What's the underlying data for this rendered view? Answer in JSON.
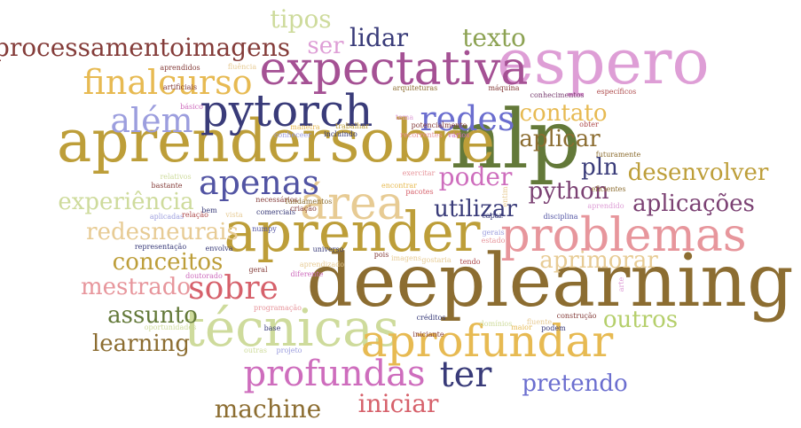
{
  "words": [
    {
      "t": "deeplearning",
      "c": "#8c6d31"
    },
    {
      "t": "nlp",
      "c": "#637939"
    },
    {
      "t": "aprendersobre",
      "c": "#bd9e39"
    },
    {
      "t": "espero",
      "c": "#de9ed6"
    },
    {
      "t": "expectativa",
      "c": "#a55194"
    },
    {
      "t": "aprender",
      "c": "#bd9e39"
    },
    {
      "t": "técnicas",
      "c": "#cedb9c"
    },
    {
      "t": "problemas",
      "c": "#e7969c"
    },
    {
      "t": "pytorch",
      "c": "#393b79"
    },
    {
      "t": "aprofundar",
      "c": "#e7ba52"
    },
    {
      "t": "área",
      "c": "#e7cb94"
    },
    {
      "t": "processamentoimagens",
      "c": "#843c39"
    },
    {
      "t": "finalcurso",
      "c": "#e7ba52"
    },
    {
      "t": "profundas",
      "c": "#ce6dbd"
    },
    {
      "t": "redes",
      "c": "#6b6ecf"
    },
    {
      "t": "além",
      "c": "#9c9ede"
    },
    {
      "t": "apenas",
      "c": "#5254a3"
    },
    {
      "t": "sobre",
      "c": "#d6616b"
    },
    {
      "t": "ter",
      "c": "#393b79"
    },
    {
      "t": "tipos",
      "c": "#cedb9c"
    },
    {
      "t": "lidar",
      "c": "#393b79"
    },
    {
      "t": "texto",
      "c": "#8ca252"
    },
    {
      "t": "ser",
      "c": "#de9ed6"
    },
    {
      "t": "contato",
      "c": "#e7ba52"
    },
    {
      "t": "aplicar",
      "c": "#8c6d31"
    },
    {
      "t": "pln",
      "c": "#393b79"
    },
    {
      "t": "desenvolver",
      "c": "#bd9e39"
    },
    {
      "t": "poder",
      "c": "#ce6dbd"
    },
    {
      "t": "python",
      "c": "#7b4173"
    },
    {
      "t": "aplicações",
      "c": "#7b4173"
    },
    {
      "t": "utilizar",
      "c": "#393b79"
    },
    {
      "t": "experiência",
      "c": "#cedb9c"
    },
    {
      "t": "redesneurais",
      "c": "#e7cb94"
    },
    {
      "t": "conceitos",
      "c": "#bd9e39"
    },
    {
      "t": "aprimorar",
      "c": "#e7cb94"
    },
    {
      "t": "mestrado",
      "c": "#e7969c"
    },
    {
      "t": "assunto",
      "c": "#637939"
    },
    {
      "t": "learning",
      "c": "#8c6d31"
    },
    {
      "t": "outros",
      "c": "#b5cf6b"
    },
    {
      "t": "pretendo",
      "c": "#6b6ecf"
    },
    {
      "t": "iniciar",
      "c": "#d6616b"
    },
    {
      "t": "machine",
      "c": "#8c6d31"
    },
    {
      "t": "aprendidos",
      "c": "#843c39"
    },
    {
      "t": "fluência",
      "c": "#e7cb94"
    },
    {
      "t": "artificiais",
      "c": "#843c39"
    },
    {
      "t": "arquiteturas",
      "c": "#8c6d31"
    },
    {
      "t": "máquina",
      "c": "#843c39"
    },
    {
      "t": "conhecimentos",
      "c": "#7b4173"
    },
    {
      "t": "específicos",
      "c": "#ad494a"
    },
    {
      "t": "básico",
      "c": "#ce6dbd"
    },
    {
      "t": "maneira",
      "c": "#e7ba52"
    },
    {
      "t": "tema",
      "c": "#de9ed6"
    },
    {
      "t": "potencialmente",
      "c": "#843c39"
    },
    {
      "t": "obter",
      "c": "#ad494a"
    },
    {
      "t": "conheceer",
      "c": "#9c9ede"
    },
    {
      "t": "trabalhar",
      "c": "#bd9e39"
    },
    {
      "t": "incluindo",
      "c": "#393b79"
    },
    {
      "t": "recorrentes",
      "c": "#e7969c"
    },
    {
      "t": "vários",
      "c": "#ce6dbd"
    },
    {
      "t": "futuramente",
      "c": "#8c6d31"
    },
    {
      "t": "relativos",
      "c": "#cedb9c"
    },
    {
      "t": "exercitar",
      "c": "#e7969c"
    },
    {
      "t": "bastante",
      "c": "#843c39"
    },
    {
      "t": "necessários",
      "c": "#843c39"
    },
    {
      "t": "encontrar",
      "c": "#e7ba52"
    },
    {
      "t": "pacotes",
      "c": "#d6616b"
    },
    {
      "t": "eficientes",
      "c": "#8c6d31"
    },
    {
      "t": "aplicadas",
      "c": "#9c9ede"
    },
    {
      "t": "relação",
      "c": "#ad494a"
    },
    {
      "t": "bem",
      "c": "#393b79"
    },
    {
      "t": "comerciais",
      "c": "#393b79"
    },
    {
      "t": "criação",
      "c": "#843c39"
    },
    {
      "t": "fundamentos",
      "c": "#8c6d31"
    },
    {
      "t": "disciplina",
      "c": "#5254a3"
    },
    {
      "t": "aprendido",
      "c": "#de9ed6"
    },
    {
      "t": "vista",
      "c": "#e7cb94"
    },
    {
      "t": "numpy",
      "c": "#5254a3"
    },
    {
      "t": "capaz",
      "c": "#393b79"
    },
    {
      "t": "gerais",
      "c": "#9c9ede"
    },
    {
      "t": "estado",
      "c": "#e7969c"
    },
    {
      "t": "representação",
      "c": "#393b79"
    },
    {
      "t": "envolva",
      "c": "#393b79"
    },
    {
      "t": "universo",
      "c": "#393b79"
    },
    {
      "t": "geral",
      "c": "#843c39"
    },
    {
      "t": "pois",
      "c": "#843c39"
    },
    {
      "t": "imagens",
      "c": "#e7cb94"
    },
    {
      "t": "gostaria",
      "c": "#e7cb94"
    },
    {
      "t": "tendo",
      "c": "#ad494a"
    },
    {
      "t": "aprendizado",
      "c": "#e7cb94"
    },
    {
      "t": "doutorado",
      "c": "#ce6dbd"
    },
    {
      "t": "diferente",
      "c": "#ce6dbd"
    },
    {
      "t": "programação",
      "c": "#e7969c"
    },
    {
      "t": "créditos",
      "c": "#393b79"
    },
    {
      "t": "domínios",
      "c": "#cedb9c"
    },
    {
      "t": "fluente",
      "c": "#e7cb94"
    },
    {
      "t": "construção",
      "c": "#843c39"
    },
    {
      "t": "oportunidades",
      "c": "#cedb9c"
    },
    {
      "t": "base",
      "c": "#393b79"
    },
    {
      "t": "iniciante",
      "c": "#843c39"
    },
    {
      "t": "maior",
      "c": "#e7ba52"
    },
    {
      "t": "podem",
      "c": "#393b79"
    },
    {
      "t": "outras",
      "c": "#cedb9c"
    },
    {
      "t": "projeto",
      "c": "#9c9ede"
    },
    {
      "t": "arte",
      "c": "#de9ed6"
    },
    {
      "t": "entim",
      "c": "#e7cb94"
    }
  ]
}
